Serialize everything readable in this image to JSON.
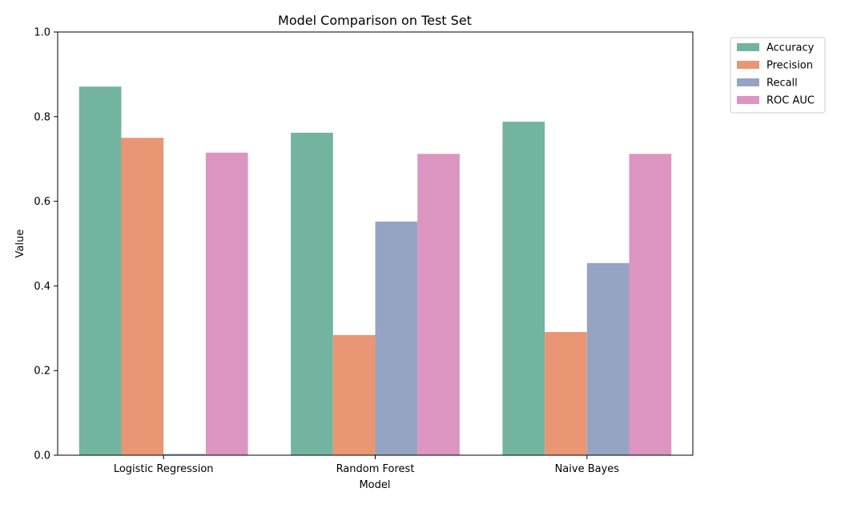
{
  "chart_data": {
    "type": "bar",
    "title": "Model Comparison on Test Set",
    "xlabel": "Model",
    "ylabel": "Value",
    "ylim": [
      0,
      1.0
    ],
    "yticks": [
      "0.0",
      "0.2",
      "0.4",
      "0.6",
      "0.8",
      "1.0"
    ],
    "categories": [
      "Logistic Regression",
      "Random Forest",
      "Naive Bayes"
    ],
    "series": [
      {
        "name": "Accuracy",
        "color": "#73b4a0",
        "values": [
          0.871,
          0.762,
          0.788
        ]
      },
      {
        "name": "Precision",
        "color": "#e99674",
        "values": [
          0.75,
          0.284,
          0.291
        ]
      },
      {
        "name": "Recall",
        "color": "#95a4c3",
        "values": [
          0.003,
          0.552,
          0.454
        ]
      },
      {
        "name": "ROC AUC",
        "color": "#db95c0",
        "values": [
          0.715,
          0.712,
          0.712
        ]
      }
    ],
    "legend_position": "outside-top-right",
    "grid": false
  }
}
